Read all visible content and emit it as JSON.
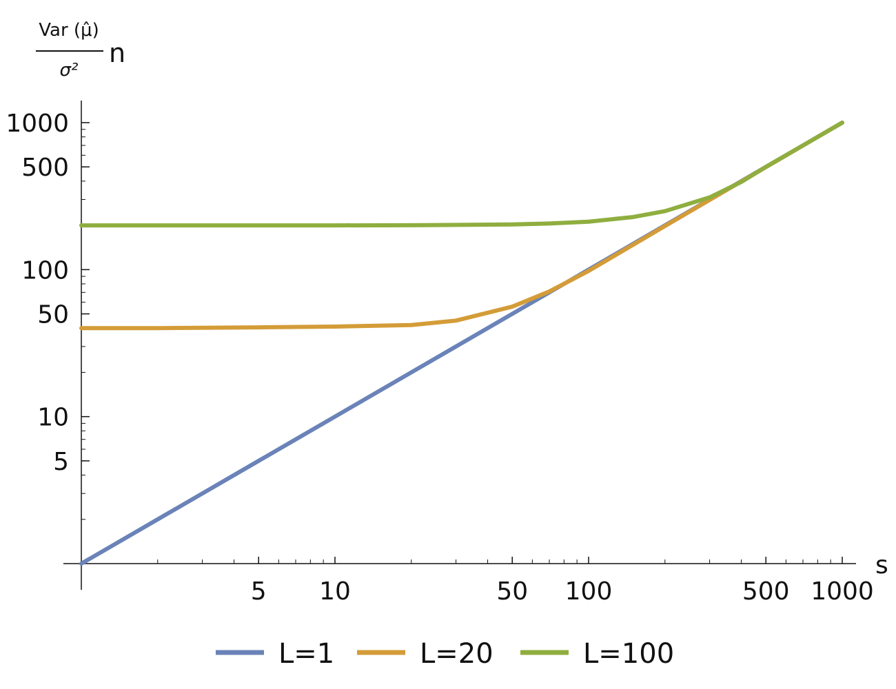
{
  "chart_data": {
    "type": "line",
    "xlabel": "s",
    "ylabel": {
      "numerator": "Var (μ̂)",
      "denominator": "σ²",
      "suffix": "n"
    },
    "xscale": "log",
    "yscale": "log",
    "xlim": [
      1,
      1000
    ],
    "ylim": [
      1,
      1000
    ],
    "x_ticks": [
      {
        "value": 5,
        "label": "5"
      },
      {
        "value": 10,
        "label": "10"
      },
      {
        "value": 50,
        "label": "50"
      },
      {
        "value": 100,
        "label": "100"
      },
      {
        "value": 500,
        "label": "500"
      },
      {
        "value": 1000,
        "label": "1000"
      }
    ],
    "y_ticks": [
      {
        "value": 5,
        "label": "5"
      },
      {
        "value": 10,
        "label": "10"
      },
      {
        "value": 50,
        "label": "50"
      },
      {
        "value": 100,
        "label": "100"
      },
      {
        "value": 500,
        "label": "500"
      },
      {
        "value": 1000,
        "label": "1000"
      }
    ],
    "grid": false,
    "legend_position": "bottom",
    "series": [
      {
        "name": "L=1",
        "color": "#6a83b8",
        "x": [
          1,
          2,
          5,
          10,
          20,
          50,
          100,
          200,
          500,
          1000
        ],
        "y": [
          1,
          2,
          5,
          10,
          20,
          50,
          100,
          200,
          500,
          1000
        ]
      },
      {
        "name": "L=20",
        "color": "#d49c38",
        "x": [
          1,
          2,
          5,
          10,
          20,
          30,
          50,
          70,
          100,
          200,
          300,
          500,
          1000
        ],
        "y": [
          40,
          40,
          40.5,
          41,
          42,
          45,
          56,
          71,
          98,
          198,
          298,
          498,
          1000
        ]
      },
      {
        "name": "L=100",
        "color": "#8fae3f",
        "x": [
          1,
          2,
          5,
          10,
          20,
          50,
          70,
          100,
          150,
          200,
          300,
          400,
          500,
          700,
          1000
        ],
        "y": [
          200,
          200,
          200,
          200,
          200.5,
          203,
          206,
          212,
          228,
          250,
          310,
          395,
          500,
          700,
          1000
        ]
      }
    ]
  }
}
